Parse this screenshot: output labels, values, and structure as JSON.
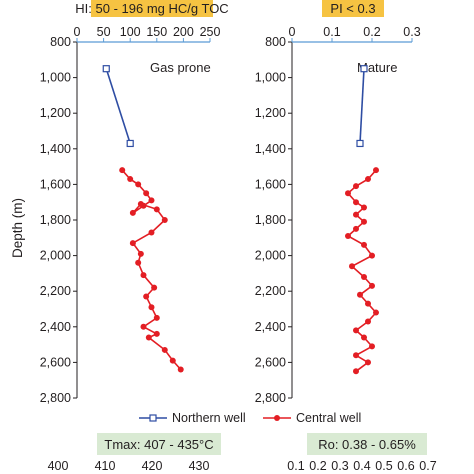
{
  "colors": {
    "northern": "#2e4da3",
    "central": "#e31e24",
    "axis_top": "#5b9bd5",
    "banner_orange": "#f6c342",
    "banner_green": "#d9ead3"
  },
  "chart_data": [
    {
      "type": "line",
      "ylabel": "Depth (m)",
      "ylim": [
        800,
        2800
      ],
      "y_inverted": true,
      "yticks": [
        "800",
        "1,000",
        "1,200",
        "1,400",
        "1,600",
        "1,800",
        "2,000",
        "2,200",
        "2,400",
        "2,600",
        "2,800"
      ],
      "top_axis": {
        "banner": "HI: 50 - 196 mg HC/g TOC",
        "xlim": [
          0,
          250
        ],
        "ticks": [
          "0",
          "50",
          "100",
          "150",
          "200",
          "250"
        ]
      },
      "bottom_axis": {
        "banner": "Tmax: 407 - 435°C",
        "ticks": [
          "400",
          "410",
          "420",
          "430"
        ]
      },
      "annotation": "Gas prone",
      "series": [
        {
          "name": "Northern well",
          "x": [
            55,
            100
          ],
          "y": [
            950,
            1370
          ]
        },
        {
          "name": "Central well",
          "x": [
            85,
            100,
            115,
            130,
            140,
            125,
            105,
            120,
            150,
            165,
            140,
            105,
            120,
            115,
            125,
            145,
            130,
            140,
            150,
            125,
            150,
            135,
            165,
            180,
            195
          ],
          "y": [
            1520,
            1570,
            1600,
            1650,
            1690,
            1720,
            1760,
            1710,
            1740,
            1800,
            1870,
            1930,
            1990,
            2040,
            2110,
            2180,
            2230,
            2290,
            2350,
            2400,
            2440,
            2460,
            2530,
            2590,
            2640
          ]
        }
      ]
    },
    {
      "type": "line",
      "ylim": [
        800,
        2800
      ],
      "y_inverted": true,
      "yticks": [
        "800",
        "1,000",
        "1,200",
        "1,400",
        "1,600",
        "1,800",
        "2,000",
        "2,200",
        "2,400",
        "2,600",
        "2,800"
      ],
      "top_axis": {
        "banner": "PI < 0.3",
        "xlim": [
          0,
          0.3
        ],
        "ticks": [
          "0",
          "0.1",
          "0.2",
          "0.3"
        ]
      },
      "bottom_axis": {
        "banner": "Ro: 0.38 - 0.65%",
        "ticks": [
          "0.1",
          "0.2",
          "0.3",
          "0.4",
          "0.5",
          "0.6",
          "0.7"
        ]
      },
      "annotation": "Mature",
      "series": [
        {
          "name": "Northern well",
          "x": [
            0.18,
            0.17
          ],
          "y": [
            950,
            1370
          ]
        },
        {
          "name": "Central well",
          "x": [
            0.21,
            0.19,
            0.16,
            0.14,
            0.16,
            0.18,
            0.16,
            0.18,
            0.16,
            0.14,
            0.18,
            0.2,
            0.15,
            0.18,
            0.2,
            0.17,
            0.19,
            0.21,
            0.19,
            0.16,
            0.18,
            0.2,
            0.16,
            0.19,
            0.16
          ],
          "y": [
            1520,
            1570,
            1610,
            1650,
            1700,
            1730,
            1770,
            1810,
            1850,
            1890,
            1940,
            2000,
            2060,
            2120,
            2170,
            2220,
            2270,
            2320,
            2370,
            2420,
            2460,
            2510,
            2560,
            2600,
            2650
          ]
        }
      ]
    }
  ],
  "legend": {
    "northern": "Northern well",
    "central": "Central well"
  }
}
